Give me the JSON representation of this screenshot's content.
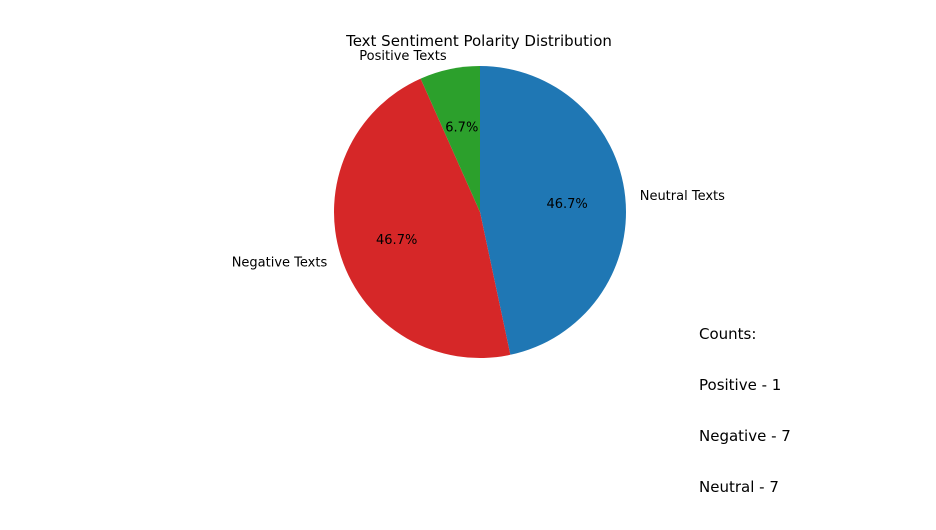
{
  "chart_data": {
    "type": "pie",
    "title": "Text Sentiment Polarity Distribution",
    "slices": [
      {
        "label": "Neutral Texts",
        "value": 7,
        "percent_label": "46.7%",
        "color": "#1f77b4"
      },
      {
        "label": "Negative Texts",
        "value": 7,
        "percent_label": "46.7%",
        "color": "#d62728"
      },
      {
        "label": "Positive Texts",
        "value": 1,
        "percent_label": "6.7%",
        "color": "#2ca02c"
      }
    ],
    "start_angle_deg": 90,
    "direction": "clockwise",
    "counts_note": {
      "heading": "Counts:",
      "lines": [
        "Positive - 1",
        "Negative - 7",
        "Neutral - 7"
      ]
    }
  }
}
